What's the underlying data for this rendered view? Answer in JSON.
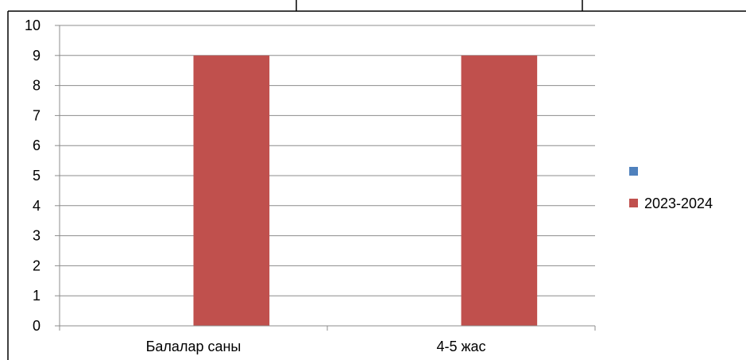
{
  "chart_data": {
    "type": "bar",
    "title": "",
    "xlabel": "",
    "ylabel": "",
    "categories": [
      "Балалар саны",
      "4-5 жас"
    ],
    "series": [
      {
        "name": "",
        "values": [
          0,
          0
        ],
        "color": "#4F81BD"
      },
      {
        "name": "2023-2024",
        "values": [
          9,
          9
        ],
        "color": "#C0504D"
      }
    ],
    "ylim": [
      0,
      10
    ],
    "yticks": [
      0,
      1,
      2,
      3,
      4,
      5,
      6,
      7,
      8,
      9,
      10
    ],
    "grid": true,
    "legend_position": "right"
  }
}
